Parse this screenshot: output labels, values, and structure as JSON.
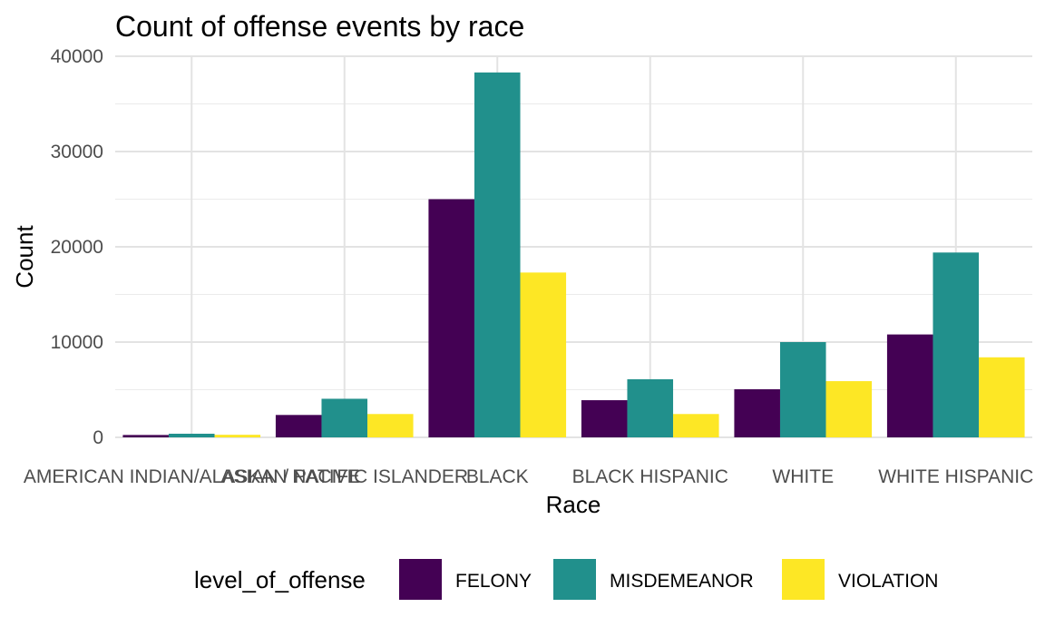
{
  "chart_data": {
    "type": "bar",
    "title": "Count of offense events by race",
    "xlabel": "Race",
    "ylabel": "Count",
    "categories": [
      "AMERICAN INDIAN/ALASKAN NATIVE",
      "ASIAN / PACIFIC ISLANDER",
      "BLACK",
      "BLACK HISPANIC",
      "WHITE",
      "WHITE HISPANIC"
    ],
    "series": [
      {
        "name": "FELONY",
        "color": "#440154",
        "values": [
          250,
          2350,
          25000,
          3900,
          5050,
          10800
        ]
      },
      {
        "name": "MISDEMEANOR",
        "color": "#21908C",
        "values": [
          380,
          4050,
          38300,
          6100,
          10000,
          19400
        ]
      },
      {
        "name": "VIOLATION",
        "color": "#FDE725",
        "values": [
          270,
          2450,
          17300,
          2450,
          5900,
          8400
        ]
      }
    ],
    "ylim": [
      0,
      40000
    ],
    "yticks": [
      "0",
      "10000",
      "20000",
      "30000",
      "40000"
    ],
    "grid": true,
    "legend": {
      "title": "level_of_offense",
      "position": "bottom"
    }
  }
}
